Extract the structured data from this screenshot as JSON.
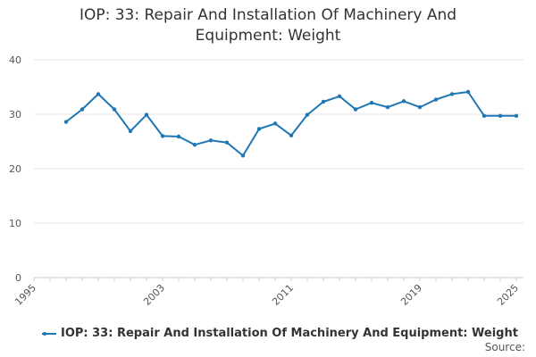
{
  "chart_data": {
    "type": "line",
    "title_lines": [
      "IOP: 33: Repair And Installation Of Machinery And",
      "Equipment: Weight"
    ],
    "xlabel": "",
    "ylabel": "",
    "xlim": [
      1995,
      2025
    ],
    "ylim": [
      0,
      40
    ],
    "x_ticks": [
      "1995",
      "2003",
      "2011",
      "2019",
      "2025"
    ],
    "y_ticks": [
      "0",
      "10",
      "20",
      "30",
      "40"
    ],
    "grid": true,
    "legend_position": "bottom-left",
    "series": [
      {
        "name": "IOP: 33: Repair And Installation Of Machinery And Equipment: Weight",
        "color": "#1f77b4",
        "x": [
          1997,
          1998,
          1999,
          2000,
          2001,
          2002,
          2003,
          2004,
          2005,
          2006,
          2007,
          2008,
          2009,
          2010,
          2011,
          2012,
          2013,
          2014,
          2015,
          2016,
          2017,
          2018,
          2019,
          2020,
          2021,
          2022,
          2023,
          2024,
          2025
        ],
        "y": [
          28.6,
          30.9,
          33.7,
          30.9,
          26.9,
          29.9,
          26.0,
          25.9,
          24.4,
          25.2,
          24.8,
          22.4,
          27.3,
          28.3,
          26.1,
          29.9,
          32.3,
          33.3,
          30.9,
          32.1,
          31.3,
          32.4,
          31.3,
          32.7,
          33.7,
          34.1,
          29.7,
          29.7,
          29.7
        ]
      }
    ]
  },
  "source_label": "Source:"
}
